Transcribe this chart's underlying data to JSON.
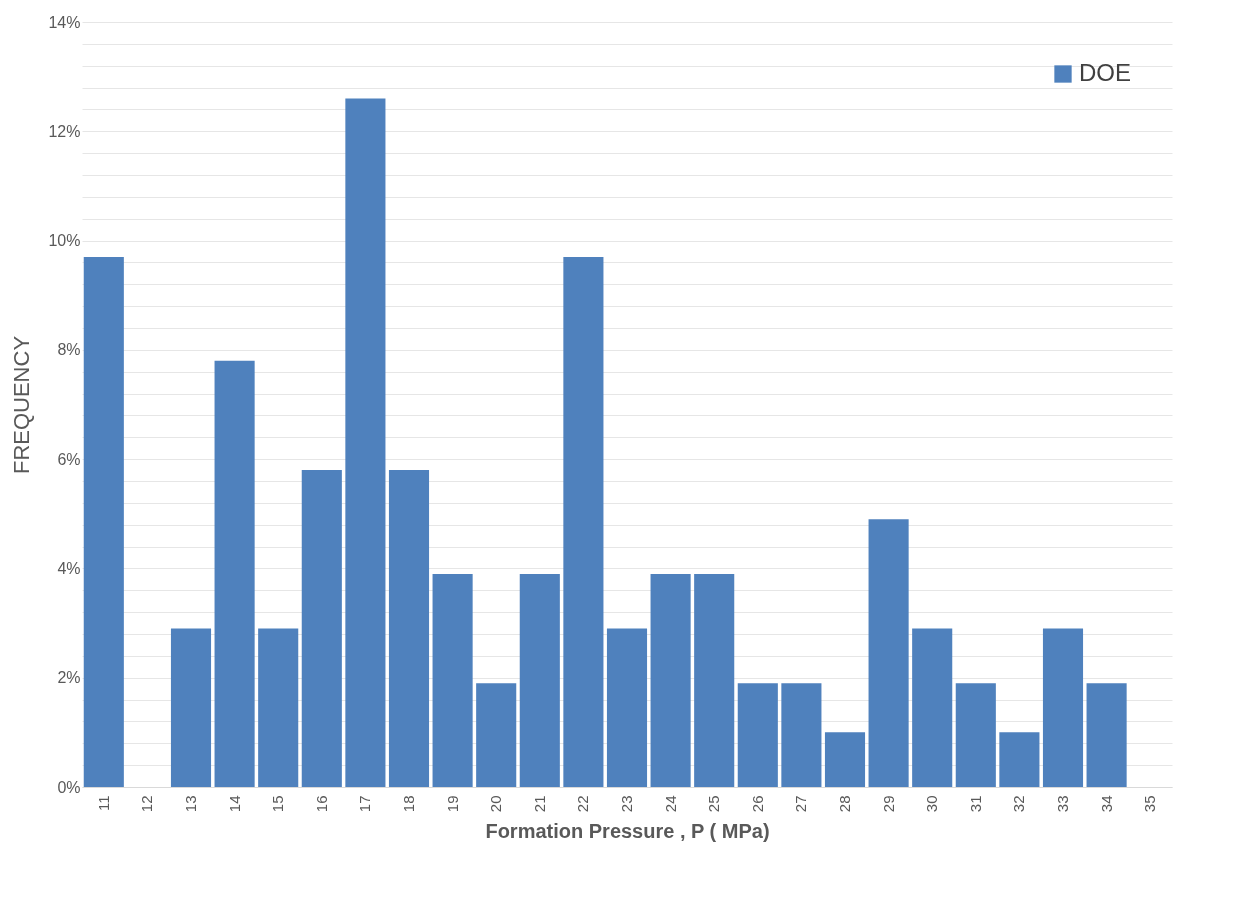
{
  "chart_data": {
    "type": "bar",
    "xlabel": "Formation Pressure , P ( MPa)",
    "ylabel": "FREQUENCY",
    "categories": [
      "11",
      "12",
      "13",
      "14",
      "15",
      "16",
      "17",
      "18",
      "19",
      "20",
      "21",
      "22",
      "23",
      "24",
      "25",
      "26",
      "27",
      "28",
      "29",
      "30",
      "31",
      "32",
      "33",
      "34",
      "35"
    ],
    "series": [
      {
        "name": "DOE",
        "color": "#4f81bd",
        "values": [
          9.7,
          0,
          2.9,
          7.8,
          2.9,
          5.8,
          12.6,
          5.8,
          3.9,
          1.9,
          3.9,
          9.7,
          2.9,
          3.9,
          3.9,
          1.9,
          1.9,
          1.0,
          4.9,
          2.9,
          1.9,
          1.0,
          2.9,
          1.9,
          0
        ]
      }
    ],
    "ylim": [
      0,
      14
    ],
    "yticks": [
      {
        "value": 0,
        "label": "0%"
      },
      {
        "value": 0.4,
        "label": null
      },
      {
        "value": 0.8,
        "label": null
      },
      {
        "value": 1.2,
        "label": null
      },
      {
        "value": 1.6,
        "label": null
      },
      {
        "value": 2,
        "label": "2%"
      },
      {
        "value": 2.4,
        "label": null
      },
      {
        "value": 2.8,
        "label": null
      },
      {
        "value": 3.2,
        "label": null
      },
      {
        "value": 3.6,
        "label": null
      },
      {
        "value": 4,
        "label": "4%"
      },
      {
        "value": 4.4,
        "label": null
      },
      {
        "value": 4.8,
        "label": null
      },
      {
        "value": 5.2,
        "label": null
      },
      {
        "value": 5.6,
        "label": null
      },
      {
        "value": 6,
        "label": "6%"
      },
      {
        "value": 6.4,
        "label": null
      },
      {
        "value": 6.8,
        "label": null
      },
      {
        "value": 7.2,
        "label": null
      },
      {
        "value": 7.6,
        "label": null
      },
      {
        "value": 8,
        "label": "8%"
      },
      {
        "value": 8.4,
        "label": null
      },
      {
        "value": 8.8,
        "label": null
      },
      {
        "value": 9.2,
        "label": null
      },
      {
        "value": 9.6,
        "label": null
      },
      {
        "value": 10,
        "label": "10%"
      },
      {
        "value": 10.4,
        "label": null
      },
      {
        "value": 10.8,
        "label": null
      },
      {
        "value": 11.2,
        "label": null
      },
      {
        "value": 11.6,
        "label": null
      },
      {
        "value": 12,
        "label": "12%"
      },
      {
        "value": 12.4,
        "label": null
      },
      {
        "value": 12.8,
        "label": null
      },
      {
        "value": 13.2,
        "label": null
      },
      {
        "value": 13.6,
        "label": null
      },
      {
        "value": 14,
        "label": "14%"
      }
    ],
    "grid": "y",
    "legend": "top right"
  }
}
